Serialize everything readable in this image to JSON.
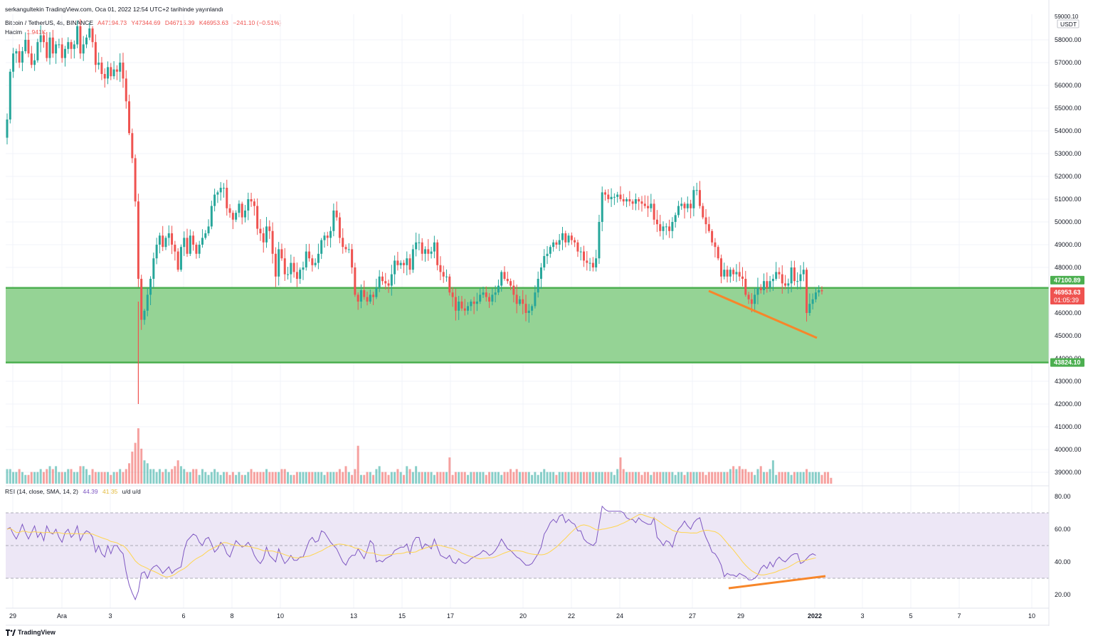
{
  "header": {
    "published_by": "serkangultekin TradingView.com, Oca 01, 2022 12:54 UTC+2 tarihinde yayınlandı"
  },
  "symbol": {
    "name": "Bitcoin / TetherUS, 4s, BINANCE",
    "open": "A47194.73",
    "high": "Y47344.69",
    "low": "D46715.39",
    "close": "K46953.63",
    "change": "−241.10 (−0.51%)"
  },
  "volume": {
    "label": "Hacim",
    "value": "1.941K"
  },
  "rsi": {
    "label": "RSI (14, close, SMA, 14, 2)",
    "value": "44.39",
    "sma": "41.35",
    "extra": "u/d u/d"
  },
  "price_axis": {
    "currency": "USDT",
    "top_tick": "59000.10",
    "ticks": [
      "58000.00",
      "57000.00",
      "56000.00",
      "55000.00",
      "54000.00",
      "53000.00",
      "52000.00",
      "51000.00",
      "50000.00",
      "49000.00",
      "48000.00",
      "46000.00",
      "45000.00",
      "44000.00",
      "43000.00",
      "42000.00",
      "41000.00",
      "40000.00",
      "39000.00"
    ],
    "labels": {
      "upper_line": "47100.89",
      "last_price": "46953.63",
      "countdown": "01:05:39",
      "lower_line": "43824.10"
    }
  },
  "rsi_axis": {
    "ticks": [
      "80.00",
      "60.00",
      "40.00",
      "20.00"
    ]
  },
  "time_axis": {
    "ticks": [
      "29",
      "Ara",
      "3",
      "6",
      "8",
      "10",
      "13",
      "15",
      "17",
      "20",
      "22",
      "24",
      "27",
      "29",
      "2022",
      "3",
      "5",
      "7",
      "10"
    ]
  },
  "footer": {
    "brand": "TradingView"
  },
  "colors": {
    "up": "#26a69a",
    "down": "#ef5350",
    "zone_fill": "#8fd18f",
    "zone_line": "#4caf50",
    "trend": "#f7862a",
    "rsi_line": "#7e57c2",
    "rsi_ma": "#ffd54f",
    "rsi_band": "#ede7f6"
  },
  "chart_data": [
    {
      "type": "candlestick",
      "title": "Bitcoin / TetherUS, 4s, BINANCE",
      "x_ticks": [
        "29",
        "Ara",
        "3",
        "6",
        "8",
        "10",
        "13",
        "15",
        "17",
        "20",
        "22",
        "24",
        "27",
        "29",
        "2022",
        "3",
        "5",
        "7",
        "10"
      ],
      "ylim": [
        38700,
        59100
      ],
      "support_zone": [
        43824.1,
        47100.89
      ],
      "last_price": 46953.63,
      "series": [
        {
          "name": "Bitcoin / TetherUS",
          "closes": [
            54500,
            56600,
            57400,
            57500,
            57000,
            57500,
            58000,
            57400,
            56900,
            57100,
            57900,
            58200,
            57900,
            57200,
            58100,
            57400,
            57800,
            57800,
            57200,
            57600,
            57900,
            57600,
            57800,
            58600,
            57400,
            57800,
            58100,
            58500,
            57900,
            56900,
            57000,
            56500,
            56300,
            56800,
            56400,
            56700,
            56600,
            57000,
            56300,
            55300,
            53900,
            52800,
            50900,
            47500,
            45700,
            46100,
            46800,
            47500,
            48400,
            49000,
            49400,
            48900,
            49300,
            49500,
            49000,
            48700,
            47900,
            48900,
            49300,
            48600,
            49400,
            49000,
            48600,
            49000,
            49300,
            49500,
            49800,
            50700,
            51200,
            51300,
            51500,
            51500,
            50600,
            50400,
            50100,
            50400,
            50800,
            50200,
            50500,
            51000,
            50900,
            50700,
            49700,
            49500,
            49100,
            49800,
            49600,
            48600,
            47600,
            48800,
            48400,
            47700,
            47700,
            48200,
            47800,
            47500,
            47900,
            48000,
            48700,
            48400,
            48100,
            48200,
            48600,
            49200,
            49400,
            49300,
            49600,
            50500,
            50200,
            49300,
            48900,
            48800,
            48800,
            48000,
            46800,
            46500,
            47000,
            46700,
            46500,
            46800,
            46700,
            47100,
            47600,
            47400,
            47300,
            47200,
            47700,
            48300,
            48100,
            48200,
            48100,
            48400,
            47900,
            48800,
            49100,
            49100,
            48600,
            48800,
            48600,
            48700,
            49100,
            48100,
            47800,
            47600,
            47600,
            46900,
            46700,
            46100,
            46500,
            46200,
            46100,
            46300,
            46500,
            46400,
            46500,
            46800,
            46900,
            46700,
            46500,
            46800,
            46900,
            47200,
            47800,
            47500,
            47400,
            47200,
            46800,
            46400,
            46600,
            46400,
            46000,
            46100,
            46300,
            46900,
            47500,
            48000,
            48500,
            48600,
            48900,
            49100,
            49000,
            49200,
            49500,
            49100,
            49400,
            49200,
            49100,
            48700,
            48700,
            48300,
            48200,
            48200,
            48000,
            48400,
            50000,
            51300,
            51200,
            51000,
            51100,
            51100,
            51200,
            51000,
            50900,
            51000,
            50900,
            50800,
            51000,
            50900,
            50800,
            50700,
            50600,
            50800,
            50100,
            49900,
            49600,
            49800,
            49800,
            49600,
            50000,
            50300,
            50700,
            50800,
            50600,
            50800,
            50600,
            51400,
            51400,
            50700,
            50200,
            49900,
            49600,
            49100,
            48900,
            48400,
            47600,
            47900,
            47600,
            47900,
            47700,
            47800,
            47600,
            47500,
            46800,
            46600,
            46400,
            46800,
            47100,
            47000,
            47400,
            47100,
            47400,
            47500,
            47800,
            47700,
            47300,
            47200,
            47300,
            48000,
            47400,
            47400,
            47700,
            47900,
            46000,
            46400,
            46600,
            46900,
            47000,
            46954
          ]
        },
        {
          "name": "Hacim",
          "relative": [
            5,
            5,
            4,
            4,
            5,
            4,
            3,
            3,
            4,
            4,
            4,
            5,
            4,
            5,
            6,
            5,
            6,
            4,
            4,
            4,
            5,
            5,
            4,
            4,
            6,
            6,
            5,
            3,
            5,
            4,
            4,
            4,
            4,
            4,
            3,
            4,
            4,
            5,
            4,
            5,
            7,
            11,
            14,
            19,
            12,
            8,
            7,
            5,
            5,
            4,
            5,
            4,
            5,
            4,
            5,
            6,
            8,
            6,
            5,
            4,
            4,
            5,
            5,
            3,
            5,
            4,
            3,
            4,
            5,
            4,
            3,
            4,
            4,
            3,
            4,
            3,
            4,
            3,
            3,
            4,
            5,
            4,
            4,
            4,
            4,
            5,
            4,
            4,
            4,
            4,
            5,
            5,
            4,
            3,
            3,
            4,
            4,
            4,
            4,
            4,
            4,
            4,
            4,
            4,
            3,
            4,
            4,
            4,
            4,
            5,
            4,
            6,
            4,
            3,
            5,
            13,
            3,
            3,
            4,
            4,
            3,
            5,
            6,
            4,
            4,
            3,
            4,
            4,
            5,
            4,
            3,
            6,
            5,
            4,
            6,
            4,
            4,
            4,
            4,
            4,
            3,
            4,
            4,
            4,
            4,
            9,
            3,
            4,
            4,
            4,
            4,
            3,
            4,
            4,
            4,
            4,
            4,
            3,
            4,
            4,
            4,
            4,
            3,
            4,
            4,
            5,
            4,
            5,
            4,
            4,
            4,
            4,
            3,
            4,
            3,
            4,
            5,
            4,
            4,
            4,
            3,
            4,
            4,
            4,
            4,
            4,
            4,
            4,
            4,
            4,
            4,
            4,
            4,
            4,
            4,
            4,
            4,
            4,
            4,
            3,
            5,
            9,
            5,
            4,
            4,
            4,
            4,
            4,
            3,
            4,
            4,
            3,
            4,
            4,
            4,
            4,
            4,
            4,
            4,
            3,
            4,
            4,
            3,
            4,
            4,
            4,
            4,
            4,
            4,
            3,
            4,
            4,
            4,
            4,
            4,
            4,
            4,
            5,
            6,
            5,
            6,
            5,
            5,
            4,
            4,
            3,
            5,
            6,
            4,
            4,
            5,
            8,
            3,
            4,
            4,
            4,
            4,
            3,
            4,
            4,
            4,
            4,
            5,
            4,
            4,
            4,
            4,
            3,
            4,
            4,
            2
          ]
        },
        {
          "name": "RSI (14, close, SMA, 14, 2)",
          "values": [
            60,
            61,
            57,
            54,
            58,
            63,
            58,
            54,
            58,
            62,
            55,
            58,
            53,
            62,
            58,
            57,
            60,
            55,
            52,
            58,
            60,
            55,
            57,
            62,
            53,
            57,
            59,
            58,
            55,
            46,
            50,
            45,
            43,
            50,
            45,
            50,
            50,
            47,
            45,
            34,
            26,
            21,
            17,
            22,
            33,
            34,
            30,
            35,
            37,
            38,
            36,
            33,
            35,
            37,
            33,
            35,
            36,
            37,
            47,
            53,
            55,
            57,
            56,
            52,
            50,
            54,
            55,
            51,
            46,
            48,
            52,
            50,
            45,
            43,
            48,
            53,
            51,
            49,
            50,
            52,
            49,
            44,
            41,
            39,
            42,
            49,
            44,
            42,
            40,
            48,
            43,
            39,
            41,
            44,
            41,
            41,
            43,
            43,
            48,
            53,
            55,
            52,
            53,
            59,
            58,
            55,
            52,
            50,
            48,
            44,
            40,
            38,
            42,
            44,
            44,
            48,
            45,
            42,
            47,
            53,
            51,
            40,
            41,
            40,
            42,
            43,
            44,
            47,
            48,
            49,
            49,
            51,
            45,
            52,
            55,
            55,
            48,
            51,
            50,
            48,
            54,
            49,
            44,
            43,
            42,
            44,
            40,
            39,
            42,
            40,
            39,
            40,
            42,
            43,
            44,
            45,
            47,
            46,
            44,
            45,
            47,
            50,
            54,
            51,
            48,
            47,
            45,
            43,
            42,
            40,
            38,
            38,
            39,
            42,
            45,
            49,
            57,
            60,
            64,
            66,
            64,
            68,
            69,
            64,
            66,
            64,
            63,
            59,
            59,
            54,
            52,
            51,
            50,
            52,
            63,
            74,
            72,
            71,
            71,
            71,
            71,
            71,
            70,
            67,
            66,
            66,
            64,
            67,
            65,
            64,
            63,
            63,
            67,
            55,
            53,
            50,
            53,
            52,
            49,
            56,
            60,
            62,
            65,
            62,
            60,
            64,
            66,
            67,
            60,
            55,
            51,
            46,
            45,
            42,
            38,
            31,
            33,
            32,
            32,
            31,
            33,
            32,
            31,
            29,
            29,
            30,
            32,
            36,
            38,
            36,
            40,
            37,
            41,
            43,
            41,
            40,
            42,
            44,
            45,
            45,
            39,
            40,
            42,
            44,
            45,
            44
          ]
        }
      ]
    }
  ]
}
